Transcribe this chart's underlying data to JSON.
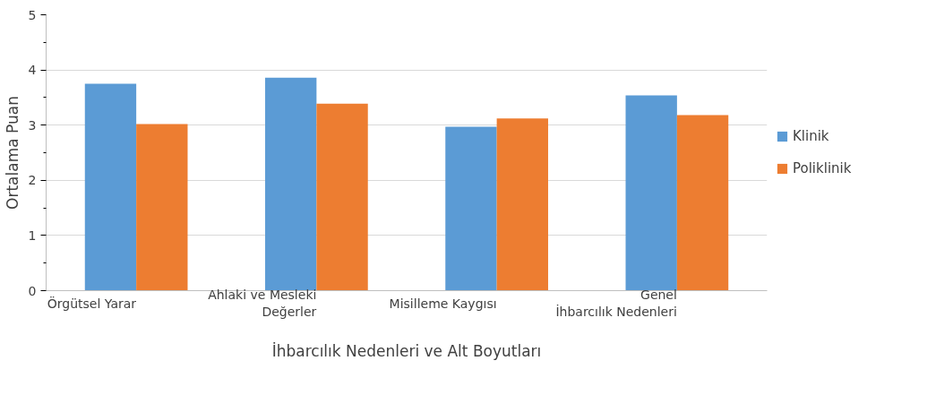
{
  "chart_data": {
    "type": "bar",
    "xlabel": "İhbarcılık Nedenleri ve Alt Boyutları",
    "ylabel": "Ortalama Puan",
    "categories": [
      "Örgütsel Yarar",
      "Ahlaki ve Mesleki Değerler",
      "Misilleme Kaygısı",
      "Genel İhbarcılık Nedenleri"
    ],
    "series": [
      {
        "name": "Klinik",
        "color": "#5b9bd5",
        "values": [
          3.75,
          3.86,
          2.97,
          3.54
        ]
      },
      {
        "name": "Poliklinik",
        "color": "#ed7d31",
        "values": [
          3.02,
          3.39,
          3.12,
          3.18
        ]
      }
    ],
    "ylim": [
      0,
      5
    ],
    "yticks": [
      0,
      1,
      2,
      3,
      4,
      5
    ],
    "grid": "y",
    "legend": "right"
  }
}
